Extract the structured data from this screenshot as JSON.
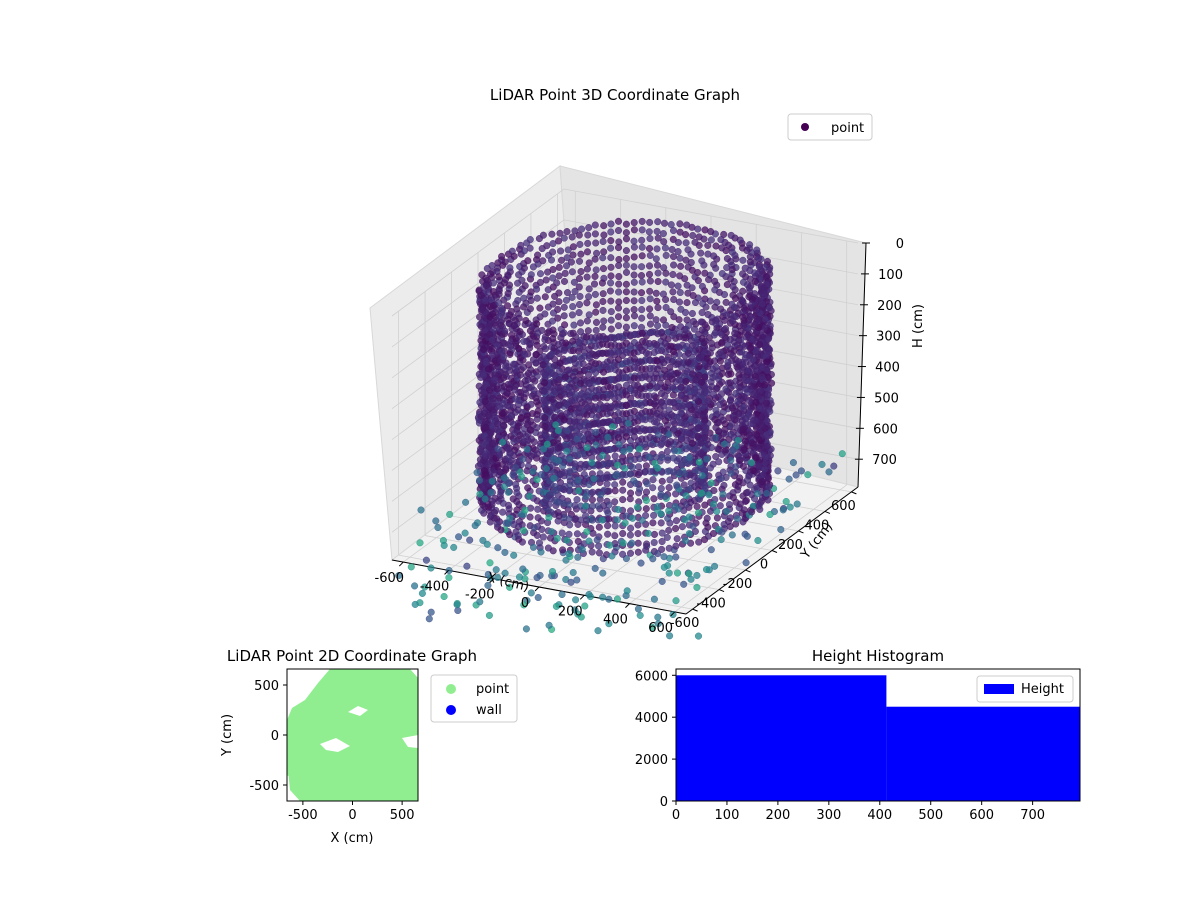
{
  "chart_data": [
    {
      "type": "scatter",
      "projection": "3d",
      "title": "LiDAR Point 3D Coordinate Graph",
      "xlabel": "X (cm)",
      "ylabel": "Y (cm)",
      "zlabel": "H (cm)",
      "xticks": [
        "-600",
        "-400",
        "-200",
        "0",
        "200",
        "400",
        "600"
      ],
      "yticks": [
        "-600",
        "-400",
        "-200",
        "0",
        "200",
        "400",
        "600"
      ],
      "zticks": [
        "0",
        "100",
        "200",
        "300",
        "400",
        "500",
        "600",
        "700"
      ],
      "xlim": [
        -650,
        650
      ],
      "ylim": [
        -650,
        650
      ],
      "zlim": [
        0,
        790
      ],
      "z_axis_inverted": true,
      "legend": [
        "point"
      ],
      "legend_position": "top-right",
      "colormap": "viridis",
      "grid": true
    },
    {
      "type": "scatter",
      "title": "LiDAR Point 2D Coordinate Graph",
      "xlabel": "X (cm)",
      "ylabel": "Y (cm)",
      "xticks": [
        "-500",
        "0",
        "500"
      ],
      "yticks": [
        "500",
        "0",
        "-500"
      ],
      "xlim": [
        -660,
        660
      ],
      "ylim": [
        -660,
        660
      ],
      "series": [
        {
          "name": "point",
          "color": "#90ee90"
        },
        {
          "name": "wall",
          "color": "#0000ff"
        }
      ],
      "legend_position": "outside-right"
    },
    {
      "type": "bar",
      "title": "Height Histogram",
      "xlabel": "",
      "ylabel": "",
      "xticks": [
        "0",
        "100",
        "200",
        "300",
        "400",
        "500",
        "600",
        "700"
      ],
      "yticks": [
        "0",
        "2000",
        "4000",
        "6000"
      ],
      "xlim": [
        0,
        793
      ],
      "ylim": [
        0,
        6300
      ],
      "bins": [
        {
          "from": 0,
          "to": 413,
          "count": 6000
        },
        {
          "from": 413,
          "to": 793,
          "count": 4500
        }
      ],
      "color": "#0000ff",
      "legend": [
        "Height"
      ],
      "legend_position": "top-right"
    }
  ]
}
